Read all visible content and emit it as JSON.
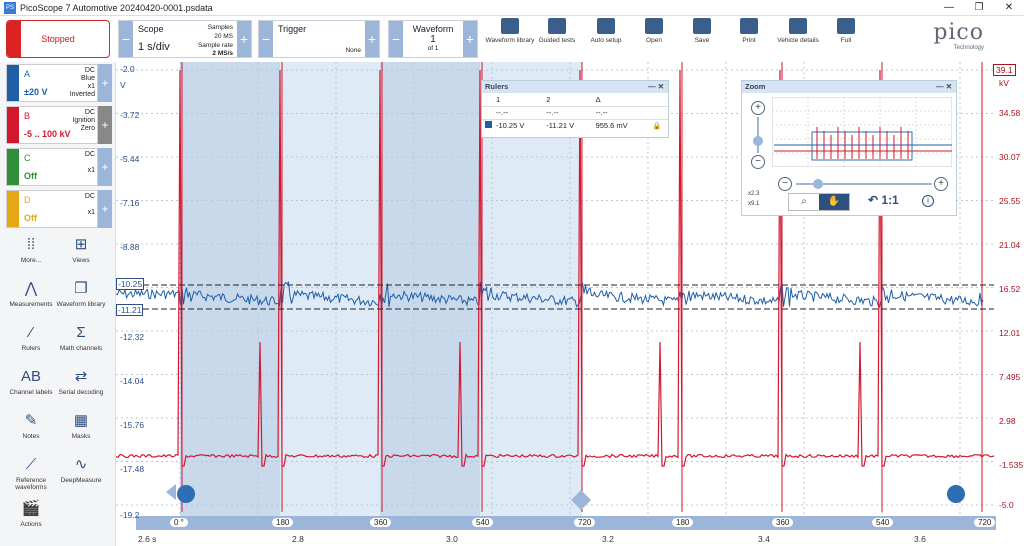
{
  "window": {
    "title": "PicoScope 7 Automotive 20240420-0001.psdata",
    "minimize": "—",
    "restore": "❐",
    "close": "✕"
  },
  "toolbar": {
    "stop_label": "Stopped",
    "scope": {
      "label": "Scope",
      "timebase": "1 s/div",
      "samples_label": "Samples",
      "samples": "20 MS",
      "rate_label": "Sample rate",
      "rate": "2 MS/s"
    },
    "trigger": {
      "label": "Trigger",
      "mode": "None"
    },
    "waveform": {
      "label": "Waveform",
      "number": "1",
      "of": "of 1"
    },
    "buttons": [
      "Waveform library",
      "Guided tests",
      "Auto setup",
      "Open",
      "Save",
      "Print",
      "Vehicle details",
      "Full"
    ],
    "logo": "pico",
    "logo_sub": "Technology"
  },
  "channels": [
    {
      "name": "A",
      "coupling": "DC",
      "color_name": "Blue",
      "probe": "x1",
      "mode": "Inverted",
      "range": "±20 V",
      "color": "#1f5fa8"
    },
    {
      "name": "B",
      "coupling": "DC",
      "color_name": "Ignition",
      "probe": "Zero",
      "mode": "",
      "range": "-5 .. 100 kV",
      "color": "#d2182f"
    },
    {
      "name": "C",
      "coupling": "DC",
      "color_name": "",
      "probe": "x1",
      "mode": "",
      "range": "Off",
      "color": "#2f8f3a"
    },
    {
      "name": "D",
      "coupling": "DC",
      "color_name": "",
      "probe": "x1",
      "mode": "",
      "range": "Off",
      "color": "#e6a817"
    }
  ],
  "tools": [
    "More...",
    "Views",
    "Measurements",
    "Waveform library",
    "Rulers",
    "Math channels",
    "Channel labels",
    "Serial decoding",
    "Notes",
    "Masks",
    "Reference waveforms",
    "DeepMeasure",
    "Actions"
  ],
  "axis_left": [
    "-2.0",
    "V",
    "-3.72",
    "-5.44",
    "-7.16",
    "-8.88",
    "-10.25",
    "-11.21",
    "-12.32",
    "-14.04",
    "-15.76",
    "-17.48",
    "-19.2"
  ],
  "axis_right": [
    "39.1",
    "kV",
    "34.58",
    "30.07",
    "25.55",
    "21.04",
    "16.52",
    "12.01",
    "7.495",
    "2.98",
    "-1.535",
    "-5.0"
  ],
  "x_axis": [
    "2.6 s",
    "2.8",
    "3.0",
    "3.2",
    "3.4",
    "3.6"
  ],
  "crank_labels": [
    "0 °",
    "180",
    "360",
    "540",
    "720",
    "180",
    "360",
    "540",
    "720"
  ],
  "rulers": {
    "title": "Rulers",
    "col1": "1",
    "col2": "2",
    "col3": "Δ",
    "row1": [
      "--.--",
      "--.--",
      "--.--"
    ],
    "row2": [
      "-10.25 V",
      "-11.21 V",
      "955.6 mV"
    ]
  },
  "zoom": {
    "title": "Zoom",
    "x": "x2.3",
    "y": "x9.1",
    "ratio": "1:1"
  },
  "colors": {
    "accent": "#2d6eb5",
    "blue_trace": "#1f5fa8",
    "red_trace": "#d2182f",
    "shade": "#bcd1ea"
  }
}
